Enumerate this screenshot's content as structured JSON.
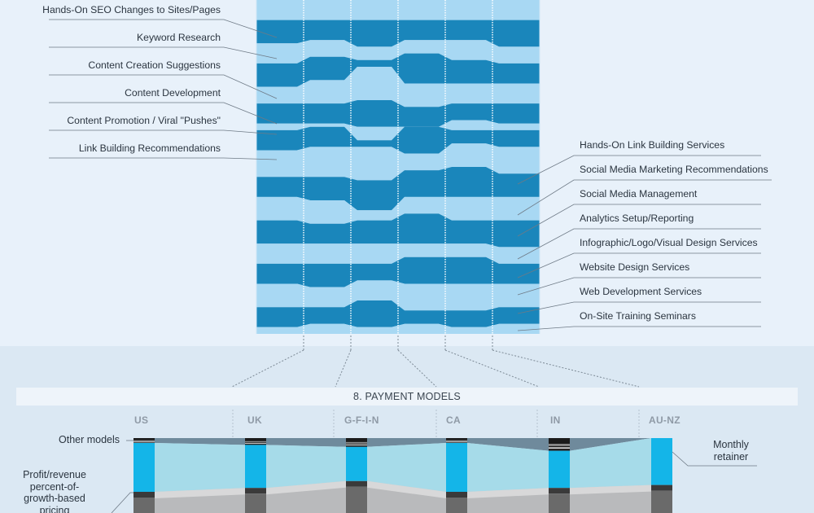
{
  "top_section": {
    "left_labels": [
      "Hands-On SEO Changes to Sites/Pages",
      "Keyword Research",
      "Content Creation Suggestions",
      "Content Development",
      "Content Promotion / Viral \"Pushes\"",
      "Link Building Recommendations"
    ],
    "right_labels": [
      "Hands-On Link Building Services",
      "Social Media Marketing Recommendations",
      "Social Media Management",
      "Analytics Setup/Reporting",
      "Infographic/Logo/Visual Design Services",
      "Website Design Services",
      "Web Development Services",
      "On-Site Training Seminars"
    ]
  },
  "payment_section": {
    "title": "8. PAYMENT MODELS",
    "left_labels": {
      "other": "Other models",
      "profit": "Profit/revenue percent-of-growth-based pricing"
    },
    "right_label": "Monthly retainer"
  },
  "chart_data": [
    {
      "type": "area",
      "title": "",
      "categories": [
        "US",
        "UK",
        "G-F-I-N",
        "CA",
        "IN",
        "AU-NZ"
      ],
      "band_order_top_to_bottom": [
        "(cropped)",
        "Hands-On SEO Changes to Sites/Pages",
        "Keyword Research",
        "Content Creation Suggestions",
        "Content Development",
        "Content Promotion / Viral \"Pushes\"",
        "Link Building Recommendations",
        "Hands-On Link Building Services",
        "Social Media Marketing Recommendations",
        "Social Media Management",
        "Analytics Setup/Reporting",
        "Infographic/Logo/Visual Design Services",
        "Website Design Services",
        "Web Development Services",
        "On-Site Training Seminars"
      ],
      "band_boundaries_top_to_bottom": [
        [
          0,
          0,
          0,
          0,
          0,
          0
        ],
        [
          6,
          6,
          6,
          6,
          6,
          6
        ],
        [
          13,
          12,
          14,
          12,
          12,
          14
        ],
        [
          19,
          17,
          18,
          16,
          18,
          19
        ],
        [
          26,
          24,
          20,
          25,
          25,
          25
        ],
        [
          31,
          31,
          30,
          32,
          31,
          31
        ],
        [
          37,
          37,
          38,
          38,
          36,
          37
        ],
        [
          39,
          38,
          42,
          38,
          39,
          39
        ],
        [
          45,
          44,
          44,
          46,
          43,
          44
        ],
        [
          53,
          53,
          54,
          51,
          50,
          52
        ],
        [
          59,
          60,
          63,
          59,
          59,
          59
        ],
        [
          66,
          67,
          66,
          64,
          66,
          66
        ],
        [
          73,
          73,
          73,
          73,
          73,
          74
        ],
        [
          79,
          79,
          79,
          77,
          77,
          79
        ],
        [
          85,
          86,
          84,
          85,
          85,
          85
        ],
        [
          92,
          92,
          90,
          93,
          93,
          92
        ],
        [
          98,
          97,
          98,
          97,
          98,
          97
        ],
        [
          100,
          100,
          100,
          100,
          100,
          100
        ]
      ],
      "colors": {
        "dark": "#1a86bb",
        "light": "#a8d8f3"
      }
    },
    {
      "type": "bar",
      "title": "8. PAYMENT MODELS",
      "categories": [
        "US",
        "UK",
        "G-F-I-N",
        "CA",
        "IN",
        "AU-NZ"
      ],
      "series": [
        {
          "name": "Other models",
          "values": [
            5,
            7,
            9,
            5,
            13,
            0
          ]
        },
        {
          "name": "Monthly retainer",
          "values": [
            50,
            44,
            35,
            50,
            38,
            48
          ]
        },
        {
          "name": "Profit/revenue percent-of-growth-based pricing",
          "values": [
            45,
            49,
            56,
            45,
            49,
            52
          ]
        }
      ],
      "colors": {
        "retainer": "#14b5e8",
        "retainer_flow": "#a6dbe9",
        "other_flow": "#5e7b8e",
        "profit_flow": "#b9bbbd"
      }
    }
  ]
}
